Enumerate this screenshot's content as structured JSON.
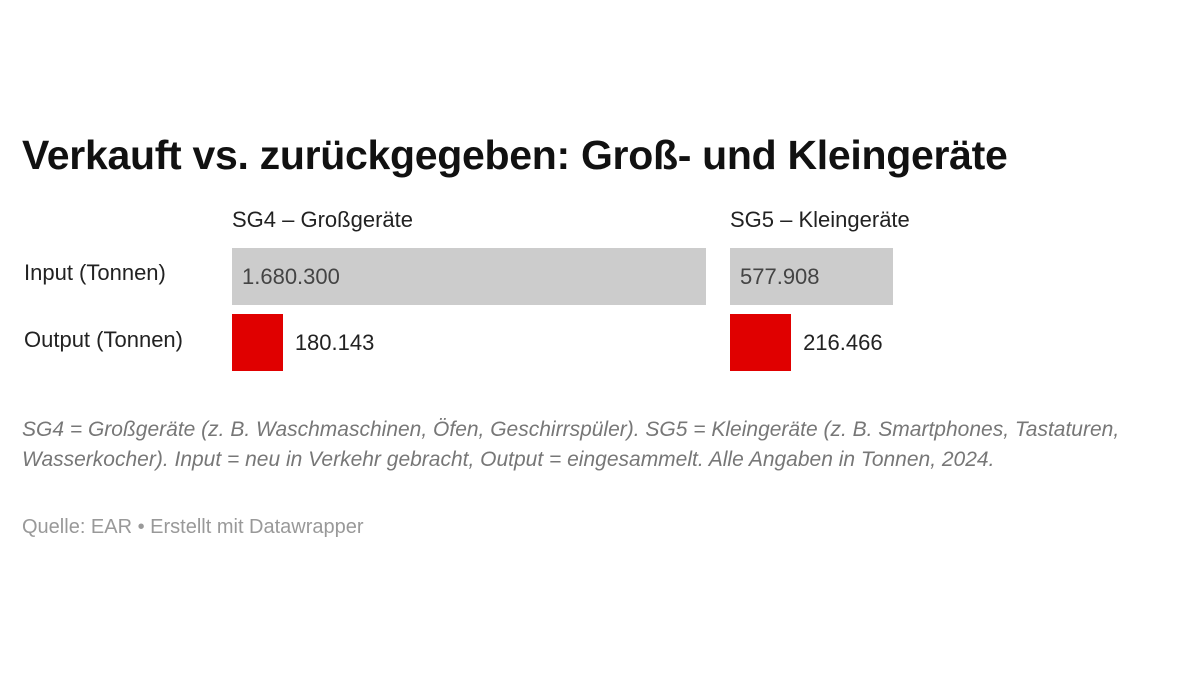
{
  "chart_data": {
    "type": "bar",
    "title": "Verkauft vs. zurückgegeben: Groß- und Kleingeräte",
    "categories": [
      "Input (Tonnen)",
      "Output (Tonnen)"
    ],
    "series": [
      {
        "name": "SG4 – Großgeräte",
        "values": [
          1680300,
          180143
        ],
        "value_labels": [
          "1.680.300",
          "180.143"
        ]
      },
      {
        "name": "SG5 – Kleingeräte",
        "values": [
          577908,
          216466
        ],
        "value_labels": [
          "577.908",
          "216.466"
        ]
      }
    ],
    "colors": {
      "input": "#cccccc",
      "output": "#e00000"
    },
    "xlim": [
      0,
      1680300
    ],
    "grid": false,
    "legend": "none"
  },
  "notes": "SG4 = Großgeräte (z. B. Waschmaschinen, Öfen, Geschirrspüler). SG5 = Kleingeräte (z. B. Smartphones, Tastaturen, Wasserkocher). Input = neu in Verkehr gebracht, Output = eingesammelt. Alle Angaben in Tonnen, 2024.",
  "source": "Quelle: EAR  • Erstellt mit Datawrapper"
}
